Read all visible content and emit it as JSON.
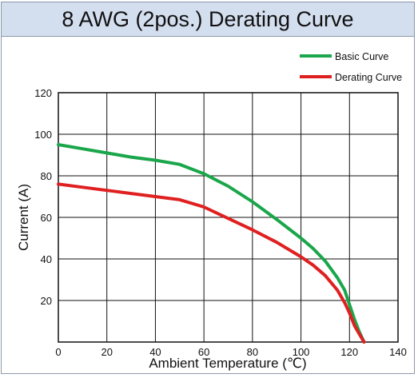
{
  "chart_data": {
    "type": "line",
    "title": "8 AWG (2pos.) Derating Curve",
    "xlabel": "Ambient Temperature (℃)",
    "ylabel": "Current (A)",
    "xlim": [
      0,
      140
    ],
    "ylim": [
      0,
      120
    ],
    "xticks": [
      0,
      20,
      40,
      60,
      80,
      100,
      120,
      140
    ],
    "yticks": [
      20,
      40,
      60,
      80,
      100,
      120
    ],
    "grid": true,
    "legend_position": "top-right",
    "series": [
      {
        "name": "Basic Curve",
        "color": "#1aa64a",
        "points": [
          [
            0,
            95
          ],
          [
            10,
            93
          ],
          [
            20,
            91
          ],
          [
            30,
            89
          ],
          [
            40,
            87.5
          ],
          [
            50,
            85.5
          ],
          [
            60,
            81
          ],
          [
            70,
            75
          ],
          [
            80,
            67.5
          ],
          [
            90,
            59
          ],
          [
            100,
            50
          ],
          [
            105,
            45
          ],
          [
            110,
            39
          ],
          [
            115,
            31
          ],
          [
            118,
            25
          ],
          [
            120,
            18
          ],
          [
            122,
            11
          ],
          [
            124,
            5
          ],
          [
            126,
            0
          ]
        ]
      },
      {
        "name": "Derating Curve",
        "color": "#e02020",
        "points": [
          [
            0,
            76
          ],
          [
            10,
            74.5
          ],
          [
            20,
            73
          ],
          [
            30,
            71.5
          ],
          [
            40,
            70
          ],
          [
            50,
            68.5
          ],
          [
            60,
            65
          ],
          [
            70,
            59.5
          ],
          [
            80,
            54
          ],
          [
            90,
            48
          ],
          [
            100,
            41
          ],
          [
            105,
            37
          ],
          [
            110,
            32
          ],
          [
            115,
            25
          ],
          [
            118,
            19
          ],
          [
            120,
            14
          ],
          [
            122,
            8
          ],
          [
            124,
            4
          ],
          [
            126,
            0
          ]
        ]
      }
    ]
  }
}
